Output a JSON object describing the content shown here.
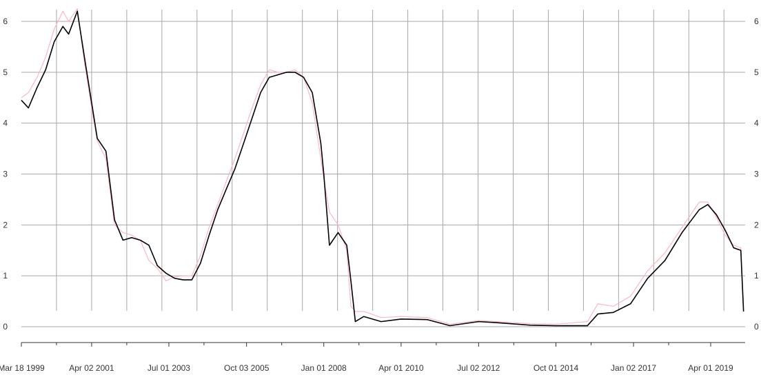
{
  "chart_data": {
    "type": "line",
    "title": "",
    "xlabel": "",
    "ylabel": "",
    "ylim": [
      -0.25,
      6.25
    ],
    "yticks": [
      0,
      1,
      2,
      3,
      4,
      5,
      6
    ],
    "ytick_labels": [
      "0",
      "1",
      "2",
      "3",
      "4",
      "5",
      "6"
    ],
    "x_range": [
      "1999-03-18",
      "2020-04-01"
    ],
    "xtick_labels": [
      {
        "date": "1999-03-18",
        "label": "Mar 18 1999"
      },
      {
        "date": "2001-04-02",
        "label": "Apr 02 2001"
      },
      {
        "date": "2003-07-01",
        "label": "Jul 01 2003"
      },
      {
        "date": "2005-10-03",
        "label": "Oct 03 2005"
      },
      {
        "date": "2008-01-01",
        "label": "Jan 01 2008"
      },
      {
        "date": "2010-04-01",
        "label": "Apr 01 2010"
      },
      {
        "date": "2012-07-02",
        "label": "Jul 02 2012"
      },
      {
        "date": "2014-10-01",
        "label": "Oct 01 2014"
      },
      {
        "date": "2017-01-02",
        "label": "Jan 02 2017"
      },
      {
        "date": "2019-04-01",
        "label": "Apr 01 2019"
      }
    ],
    "grid": true,
    "legend": "none",
    "colors": {
      "series_1": "#000000",
      "series_2": "#ffb6c1",
      "grid": "#a6a6a6"
    },
    "series": [
      {
        "color": "#000000",
        "points": [
          [
            "1999-03-18",
            4.45
          ],
          [
            "1999-06-01",
            4.3
          ],
          [
            "1999-09-01",
            4.7
          ],
          [
            "1999-12-01",
            5.05
          ],
          [
            "2000-03-01",
            5.6
          ],
          [
            "2000-06-01",
            5.9
          ],
          [
            "2000-08-01",
            5.75
          ],
          [
            "2000-11-01",
            6.2
          ],
          [
            "2001-01-15",
            5.3
          ],
          [
            "2001-04-02",
            4.4
          ],
          [
            "2001-06-01",
            3.7
          ],
          [
            "2001-09-01",
            3.45
          ],
          [
            "2001-12-01",
            2.1
          ],
          [
            "2002-03-01",
            1.7
          ],
          [
            "2002-06-01",
            1.75
          ],
          [
            "2002-09-01",
            1.7
          ],
          [
            "2002-12-01",
            1.6
          ],
          [
            "2003-03-01",
            1.2
          ],
          [
            "2003-06-01",
            1.05
          ],
          [
            "2003-09-01",
            0.95
          ],
          [
            "2003-12-01",
            0.92
          ],
          [
            "2004-03-01",
            0.92
          ],
          [
            "2004-06-01",
            1.25
          ],
          [
            "2004-09-01",
            1.8
          ],
          [
            "2004-12-01",
            2.3
          ],
          [
            "2005-03-01",
            2.7
          ],
          [
            "2005-06-01",
            3.1
          ],
          [
            "2005-09-01",
            3.6
          ],
          [
            "2005-12-01",
            4.1
          ],
          [
            "2006-03-01",
            4.6
          ],
          [
            "2006-06-01",
            4.9
          ],
          [
            "2006-09-01",
            4.95
          ],
          [
            "2006-12-01",
            5.0
          ],
          [
            "2007-03-01",
            5.0
          ],
          [
            "2007-06-01",
            4.9
          ],
          [
            "2007-09-01",
            4.6
          ],
          [
            "2007-12-01",
            3.6
          ],
          [
            "2008-01-01",
            3.0
          ],
          [
            "2008-03-01",
            1.6
          ],
          [
            "2008-06-01",
            1.85
          ],
          [
            "2008-09-01",
            1.6
          ],
          [
            "2008-10-15",
            0.9
          ],
          [
            "2008-12-01",
            0.1
          ],
          [
            "2009-03-01",
            0.2
          ],
          [
            "2009-09-01",
            0.1
          ],
          [
            "2010-04-01",
            0.15
          ],
          [
            "2011-01-01",
            0.14
          ],
          [
            "2011-09-01",
            0.02
          ],
          [
            "2012-07-02",
            0.1
          ],
          [
            "2013-01-01",
            0.08
          ],
          [
            "2014-01-01",
            0.03
          ],
          [
            "2014-10-01",
            0.02
          ],
          [
            "2015-09-01",
            0.02
          ],
          [
            "2015-12-20",
            0.25
          ],
          [
            "2016-06-01",
            0.28
          ],
          [
            "2016-12-01",
            0.45
          ],
          [
            "2017-06-01",
            0.95
          ],
          [
            "2017-12-01",
            1.3
          ],
          [
            "2018-06-01",
            1.85
          ],
          [
            "2018-12-01",
            2.3
          ],
          [
            "2019-03-01",
            2.4
          ],
          [
            "2019-06-01",
            2.2
          ],
          [
            "2019-09-01",
            1.9
          ],
          [
            "2019-12-01",
            1.55
          ],
          [
            "2020-02-15",
            1.5
          ],
          [
            "2020-03-15",
            0.3
          ]
        ]
      },
      {
        "color": "#ffb6c1",
        "points": [
          [
            "1999-03-18",
            4.5
          ],
          [
            "1999-06-01",
            4.6
          ],
          [
            "1999-09-01",
            4.9
          ],
          [
            "1999-12-01",
            5.3
          ],
          [
            "2000-03-01",
            5.85
          ],
          [
            "2000-06-01",
            6.2
          ],
          [
            "2000-08-01",
            6.0
          ],
          [
            "2000-11-01",
            6.25
          ],
          [
            "2001-01-15",
            5.2
          ],
          [
            "2001-04-02",
            4.3
          ],
          [
            "2001-06-01",
            3.65
          ],
          [
            "2001-09-01",
            3.3
          ],
          [
            "2001-12-01",
            2.0
          ],
          [
            "2002-03-01",
            1.85
          ],
          [
            "2002-06-01",
            1.8
          ],
          [
            "2002-09-01",
            1.7
          ],
          [
            "2002-12-01",
            1.3
          ],
          [
            "2003-03-01",
            1.15
          ],
          [
            "2003-06-01",
            0.9
          ],
          [
            "2003-09-01",
            0.98
          ],
          [
            "2003-12-01",
            1.0
          ],
          [
            "2004-03-01",
            1.0
          ],
          [
            "2004-06-01",
            1.4
          ],
          [
            "2004-09-01",
            1.95
          ],
          [
            "2004-12-01",
            2.4
          ],
          [
            "2005-03-01",
            2.85
          ],
          [
            "2005-06-01",
            3.3
          ],
          [
            "2005-09-01",
            3.8
          ],
          [
            "2005-12-01",
            4.3
          ],
          [
            "2006-03-01",
            4.75
          ],
          [
            "2006-06-01",
            5.05
          ],
          [
            "2006-09-01",
            5.0
          ],
          [
            "2006-12-01",
            5.0
          ],
          [
            "2007-03-01",
            5.05
          ],
          [
            "2007-06-01",
            4.9
          ],
          [
            "2007-09-01",
            4.4
          ],
          [
            "2007-12-01",
            3.3
          ],
          [
            "2008-01-01",
            2.9
          ],
          [
            "2008-03-01",
            2.25
          ],
          [
            "2008-06-01",
            2.0
          ],
          [
            "2008-09-01",
            1.5
          ],
          [
            "2008-10-15",
            0.4
          ],
          [
            "2008-12-01",
            0.3
          ],
          [
            "2009-03-01",
            0.3
          ],
          [
            "2009-09-01",
            0.18
          ],
          [
            "2010-04-01",
            0.2
          ],
          [
            "2011-01-01",
            0.18
          ],
          [
            "2011-09-01",
            0.05
          ],
          [
            "2012-07-02",
            0.12
          ],
          [
            "2013-01-01",
            0.1
          ],
          [
            "2014-01-01",
            0.06
          ],
          [
            "2014-10-01",
            0.05
          ],
          [
            "2015-09-01",
            0.1
          ],
          [
            "2015-12-20",
            0.45
          ],
          [
            "2016-06-01",
            0.4
          ],
          [
            "2016-12-01",
            0.6
          ],
          [
            "2017-06-01",
            1.1
          ],
          [
            "2017-12-01",
            1.45
          ],
          [
            "2018-06-01",
            1.95
          ],
          [
            "2018-12-01",
            2.45
          ],
          [
            "2019-03-01",
            2.45
          ],
          [
            "2019-06-01",
            2.15
          ],
          [
            "2019-09-01",
            1.8
          ],
          [
            "2019-12-01",
            1.6
          ],
          [
            "2020-02-15",
            1.55
          ],
          [
            "2020-03-15",
            0.4
          ]
        ]
      }
    ]
  }
}
